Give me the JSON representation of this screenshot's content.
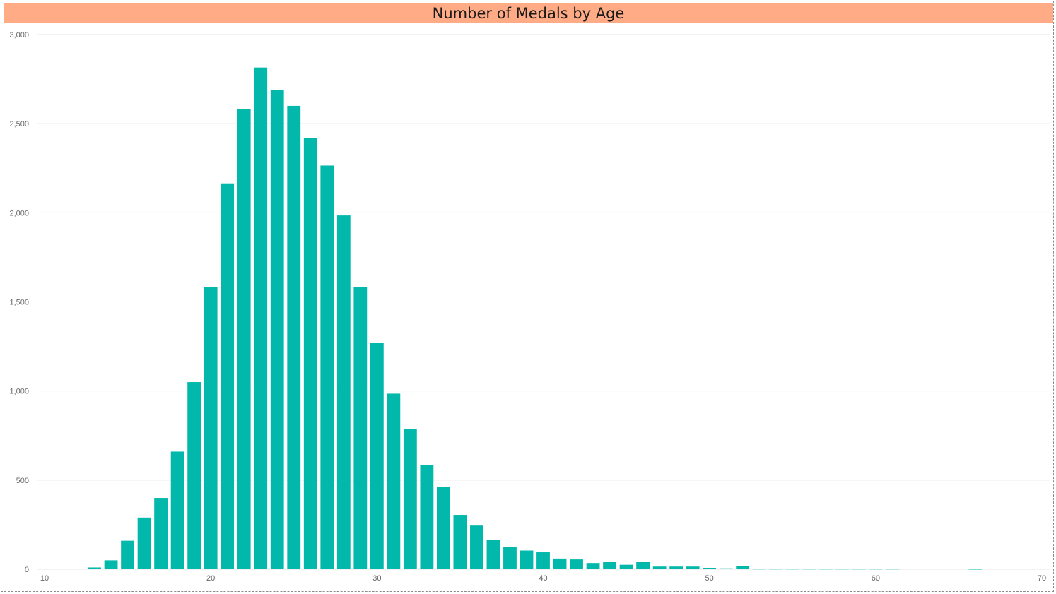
{
  "chart_data": {
    "type": "bar",
    "title": "Number of Medals by Age",
    "xlabel": "",
    "ylabel": "",
    "xlim": [
      10,
      70
    ],
    "ylim": [
      0,
      3000
    ],
    "x_ticks": [
      "10",
      "20",
      "30",
      "40",
      "50",
      "60",
      "70"
    ],
    "y_ticks": [
      "0",
      "500",
      "1,000",
      "1,500",
      "2,000",
      "2,500",
      "3,000"
    ],
    "grid": true,
    "bar_color": "#01b8aa",
    "title_bar_color": "#ffab85",
    "x": [
      13,
      14,
      15,
      16,
      17,
      18,
      19,
      20,
      21,
      22,
      23,
      24,
      25,
      26,
      27,
      28,
      29,
      30,
      31,
      32,
      33,
      34,
      35,
      36,
      37,
      38,
      39,
      40,
      41,
      42,
      43,
      44,
      45,
      46,
      47,
      48,
      49,
      50,
      51,
      52,
      53,
      54,
      55,
      56,
      57,
      58,
      59,
      60,
      61,
      66
    ],
    "values": [
      10,
      50,
      160,
      290,
      400,
      660,
      1050,
      1585,
      2165,
      2580,
      2815,
      2690,
      2600,
      2420,
      2265,
      1985,
      1585,
      1270,
      985,
      785,
      585,
      460,
      305,
      245,
      165,
      125,
      105,
      95,
      60,
      55,
      35,
      40,
      25,
      40,
      15,
      15,
      15,
      8,
      5,
      18,
      3,
      3,
      3,
      3,
      3,
      3,
      3,
      3,
      3,
      2
    ]
  }
}
